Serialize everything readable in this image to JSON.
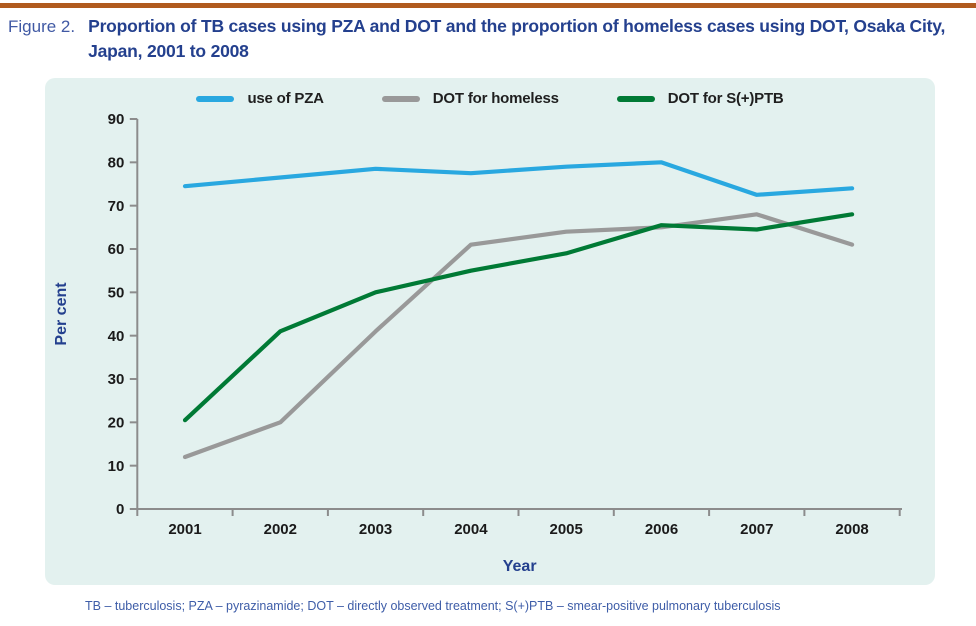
{
  "header": {
    "figure_label": "Figure 2.",
    "title": "Proportion of TB cases using PZA and DOT and the proportion of homeless cases using DOT, Osaka City, Japan, 2001 to 2008"
  },
  "footer": {
    "note": "TB – tuberculosis; PZA – pyrazinamide; DOT – directly observed treatment; S(+)PTB – smear-positive pulmonary tuberculosis"
  },
  "colors": {
    "accent_rule": "#B05A1E",
    "panel_background": "#E3F1EF",
    "title_text": "#24408E",
    "figure_label_text": "#4059A4",
    "footer_text": "#3E5DA8",
    "axis": "#8C8C8C",
    "tick_label_text": "#1A1A1A",
    "axis_title_text": "#24408E"
  },
  "chart_data": {
    "type": "line",
    "xlabel": "Year",
    "ylabel": "Per cent",
    "ylim": [
      0,
      90
    ],
    "ytick_step": 10,
    "grid": false,
    "legend_position": "top",
    "categories": [
      "2001",
      "2002",
      "2003",
      "2004",
      "2005",
      "2006",
      "2007",
      "2008"
    ],
    "series": [
      {
        "name": "use of PZA",
        "color": "#29A8E0",
        "values": [
          74.5,
          76.5,
          78.5,
          77.5,
          79,
          80,
          72.5,
          74
        ]
      },
      {
        "name": "DOT for homeless",
        "color": "#999999",
        "values": [
          12,
          20,
          41,
          61,
          64,
          65,
          68,
          61
        ]
      },
      {
        "name": "DOT for S(+)PTB",
        "color": "#007A35",
        "values": [
          20.5,
          41,
          50,
          55,
          59,
          65.5,
          64.5,
          68
        ]
      }
    ]
  }
}
